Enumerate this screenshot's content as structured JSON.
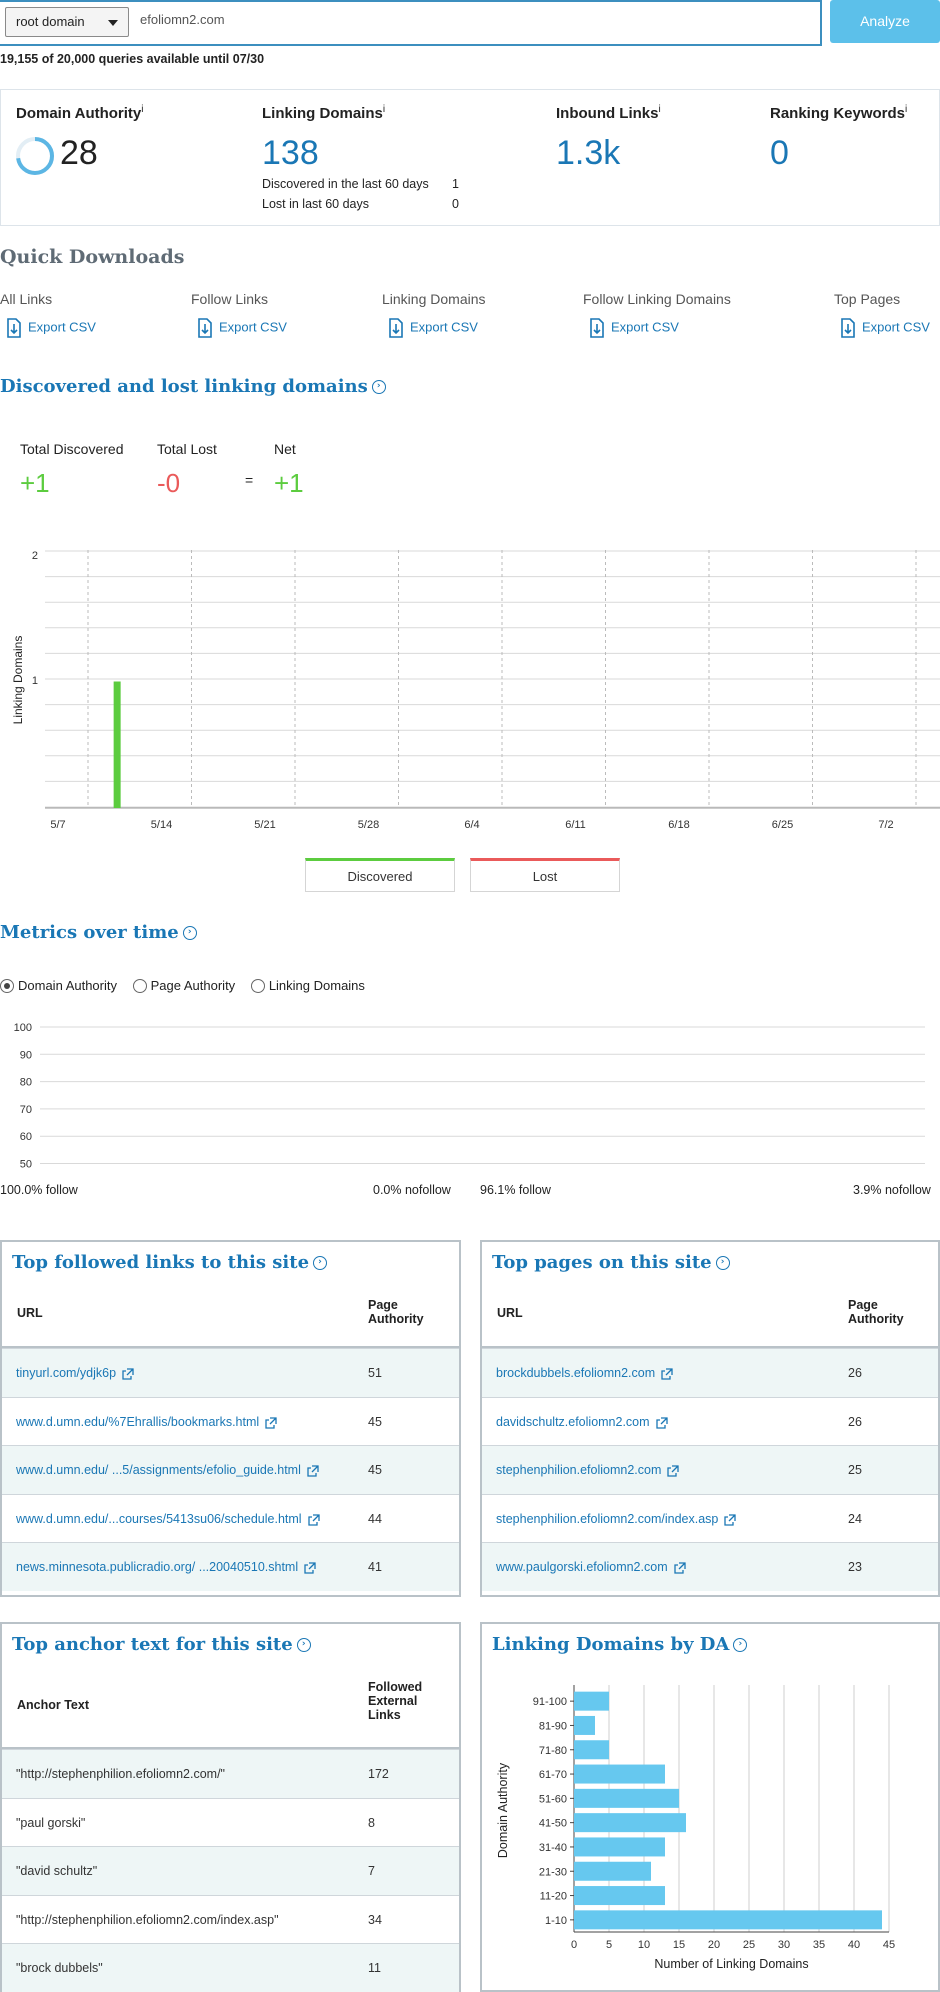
{
  "search": {
    "scope_selected": "root domain",
    "domain_value": "efoliomn2.com",
    "analyze_label": "Analyze",
    "quota_text": "19,155 of 20,000 queries available until 07/30"
  },
  "metrics": {
    "domain_authority": {
      "label": "Domain Authority",
      "info": "i",
      "value": "28",
      "ring_fraction": 0.28
    },
    "linking_domains": {
      "label": "Linking Domains",
      "info": "i",
      "value": "138",
      "discovered_label": "Discovered in the last 60 days",
      "discovered_value": "1",
      "lost_label": "Lost in last 60 days",
      "lost_value": "0"
    },
    "inbound_links": {
      "label": "Inbound Links",
      "info": "i",
      "value": "1.3k"
    },
    "ranking_keywords": {
      "label": "Ranking Keywords",
      "info": "i",
      "value": "0"
    }
  },
  "quick_downloads": {
    "title": "Quick Downloads",
    "items": [
      {
        "label": "All Links",
        "action": "Export CSV"
      },
      {
        "label": "Follow Links",
        "action": "Export CSV"
      },
      {
        "label": "Linking Domains",
        "action": "Export CSV"
      },
      {
        "label": "Follow Linking Domains",
        "action": "Export CSV"
      },
      {
        "label": "Top Pages",
        "action": "Export CSV"
      }
    ]
  },
  "discovered_lost": {
    "title": "Discovered and lost linking domains",
    "total_discovered_label": "Total Discovered",
    "total_discovered_value": "+1",
    "total_lost_label": "Total Lost",
    "total_lost_value": "-0",
    "equals": "=",
    "net_label": "Net",
    "net_value": "+1",
    "legend_discovered": "Discovered",
    "legend_lost": "Lost",
    "colors": {
      "discovered": "#5ccc3f",
      "lost": "#ea5a5a"
    }
  },
  "metrics_over_time": {
    "title": "Metrics over time",
    "options": [
      {
        "label": "Domain Authority",
        "selected": true
      },
      {
        "label": "Page Authority",
        "selected": false
      },
      {
        "label": "Linking Domains",
        "selected": false
      }
    ],
    "y_ticks": [
      "100",
      "90",
      "80",
      "70",
      "60",
      "50"
    ],
    "follow_left": "100.0% follow",
    "nofollow_left": "0.0% nofollow",
    "follow_right": "96.1% follow",
    "nofollow_right": "3.9% nofollow"
  },
  "top_followed_links": {
    "title": "Top followed links to this site",
    "col_url": "URL",
    "col_pa": "Page Authority",
    "rows": [
      {
        "url": "tinyurl.com/ydjk6p",
        "pa": "51"
      },
      {
        "url": "www.d.umn.edu/%7Ehrallis/bookmarks.html",
        "pa": "45"
      },
      {
        "url": "www.d.umn.edu/  ...5/assignments/efolio_guide.html",
        "pa": "45"
      },
      {
        "url": "www.d.umn.edu/...courses/5413su06/schedule.html",
        "pa": "44"
      },
      {
        "url": "news.minnesota.publicradio.org/  ...20040510.shtml",
        "pa": "41"
      }
    ]
  },
  "top_pages": {
    "title": "Top pages on this site",
    "col_url": "URL",
    "col_pa": "Page Authority",
    "rows": [
      {
        "url": "brockdubbels.efoliomn2.com",
        "pa": "26"
      },
      {
        "url": "davidschultz.efoliomn2.com",
        "pa": "26"
      },
      {
        "url": "stephenphilion.efoliomn2.com",
        "pa": "25"
      },
      {
        "url": "stephenphilion.efoliomn2.com/index.asp",
        "pa": "24"
      },
      {
        "url": "www.paulgorski.efoliomn2.com",
        "pa": "23"
      }
    ]
  },
  "top_anchor_text": {
    "title": "Top anchor text for this site",
    "col_anchor": "Anchor Text",
    "col_links": "Followed External Links",
    "rows": [
      {
        "anchor": "\"http://stephenphilion.efoliomn2.com/\"",
        "links": "172"
      },
      {
        "anchor": "\"paul gorski\"",
        "links": "8"
      },
      {
        "anchor": "\"david schultz\"",
        "links": "7"
      },
      {
        "anchor": "\"http://stephenphilion.efoliomn2.com/index.asp\"",
        "links": "34"
      },
      {
        "anchor": "\"brock dubbels\"",
        "links": "11"
      }
    ]
  },
  "chart_data": [
    {
      "type": "bar",
      "title": "Discovered and lost linking domains",
      "ylabel": "Linking Domains",
      "xlabel": "",
      "x_ticks": [
        "5/7",
        "5/14",
        "5/21",
        "5/28",
        "6/4",
        "6/11",
        "6/18",
        "6/25",
        "7/2"
      ],
      "ylim": [
        0,
        2
      ],
      "y_ticks": [
        "1",
        "2"
      ],
      "series": [
        {
          "name": "Discovered",
          "points": [
            {
              "x": "5/11",
              "value": 1
            }
          ]
        },
        {
          "name": "Lost",
          "points": []
        }
      ]
    },
    {
      "type": "bar",
      "title": "Linking Domains by DA",
      "orientation": "horizontal",
      "ylabel": "Domain Authority",
      "xlabel": "Number of Linking Domains",
      "categories": [
        "91-100",
        "81-90",
        "71-80",
        "61-70",
        "51-60",
        "41-50",
        "31-40",
        "21-30",
        "11-20",
        "1-10"
      ],
      "values": [
        5,
        3,
        5,
        13,
        15,
        16,
        13,
        11,
        13,
        44
      ],
      "xlim": [
        0,
        45
      ],
      "x_ticks": [
        "0",
        "5",
        "10",
        "15",
        "20",
        "25",
        "30",
        "35",
        "40",
        "45"
      ],
      "bar_color": "#66c8ef"
    }
  ]
}
